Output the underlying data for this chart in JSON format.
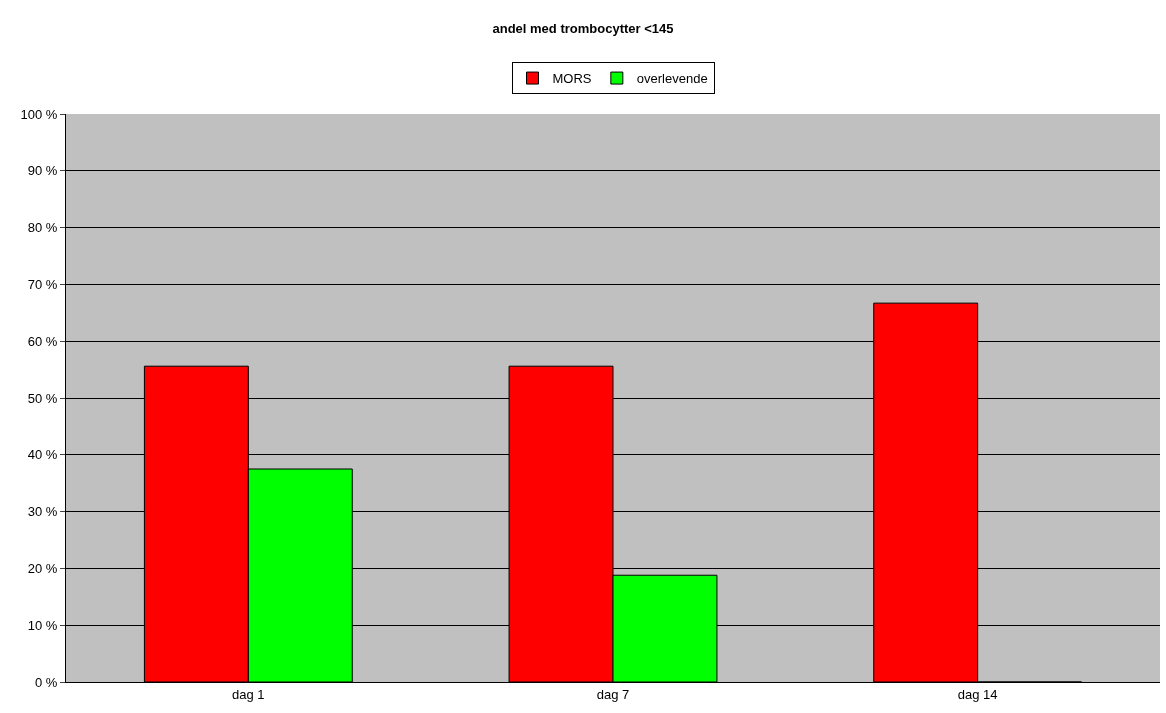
{
  "chart_data": {
    "type": "bar",
    "title": "andel med trombocytter <145",
    "categories": [
      "dag 1",
      "dag 7",
      "dag 14"
    ],
    "series": [
      {
        "name": "MORS",
        "color": "#ff0000",
        "values": [
          55.6,
          55.6,
          66.7
        ]
      },
      {
        "name": "overlevende",
        "color": "#00ff00",
        "values": [
          37.5,
          18.8,
          0
        ]
      }
    ],
    "ylim": [
      0,
      100
    ],
    "yticks": [
      {
        "value": 0,
        "label": "0 %"
      },
      {
        "value": 10,
        "label": "10 %"
      },
      {
        "value": 20,
        "label": "20 %"
      },
      {
        "value": 30,
        "label": "30 %"
      },
      {
        "value": 40,
        "label": "40 %"
      },
      {
        "value": 50,
        "label": "50 %"
      },
      {
        "value": 60,
        "label": "60 %"
      },
      {
        "value": 70,
        "label": "70 %"
      },
      {
        "value": 80,
        "label": "80 %"
      },
      {
        "value": 90,
        "label": "90 %"
      },
      {
        "value": 100,
        "label": "100 %"
      }
    ],
    "grid": "y",
    "legend": "top"
  }
}
